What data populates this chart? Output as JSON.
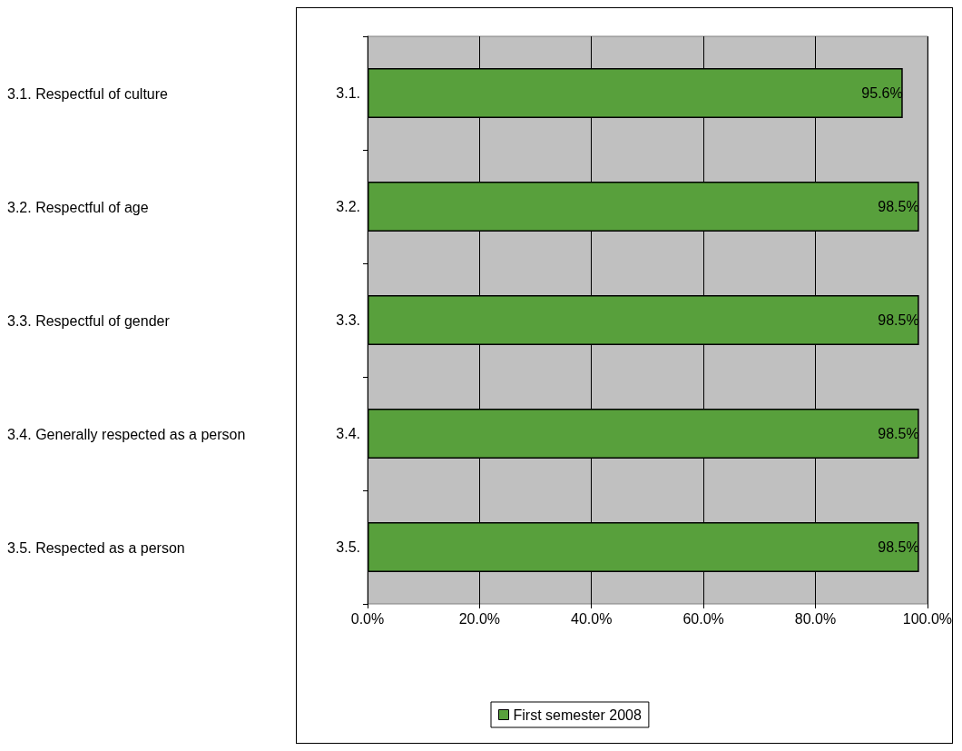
{
  "chart_data": {
    "type": "bar",
    "orientation": "horizontal",
    "categories": [
      "3.1.",
      "3.2.",
      "3.3.",
      "3.4.",
      "3.5."
    ],
    "series": [
      {
        "name": "First semester 2008",
        "color": "#58a03c",
        "values": [
          95.6,
          98.5,
          98.5,
          98.5,
          98.5
        ],
        "value_labels": [
          "95.6%",
          "98.5%",
          "98.5%",
          "98.5%",
          "98.5%"
        ]
      }
    ],
    "xlim": [
      0,
      100
    ],
    "xticks": [
      {
        "value": 0,
        "label": "0.0%"
      },
      {
        "value": 20,
        "label": "20.0%"
      },
      {
        "value": 40,
        "label": "40.0%"
      },
      {
        "value": 60,
        "label": "60.0%"
      },
      {
        "value": 80,
        "label": "80.0%"
      },
      {
        "value": 100,
        "label": "100.0%"
      }
    ],
    "annotations": [
      "3.1. Respectful of culture",
      "3.2. Respectful of age",
      "3.3. Respectful of gender",
      "3.4. Generally respected as a person",
      "3.5. Respected as a person"
    ],
    "grid": "x",
    "legend": "bottom"
  }
}
